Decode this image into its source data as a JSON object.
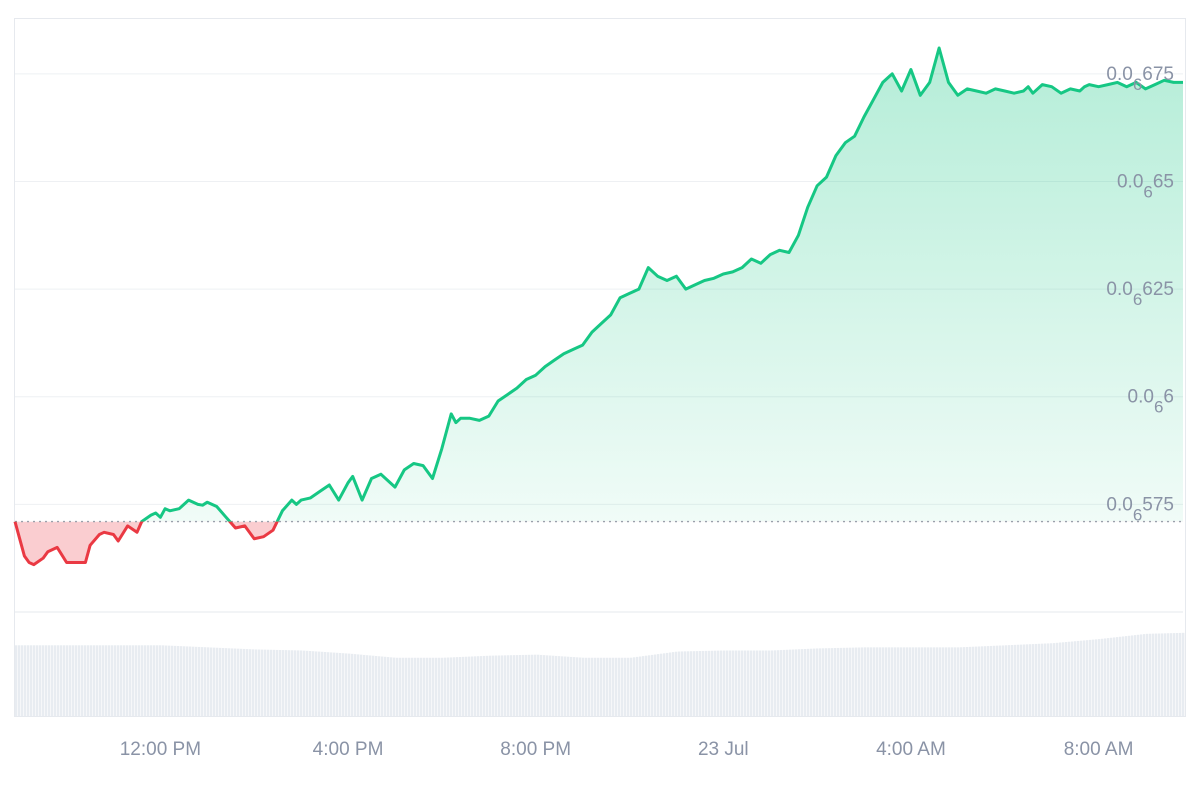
{
  "chart_data": {
    "type": "area",
    "baseline": 5.71e-07,
    "ylim": [
      5.5e-07,
      6.875e-07
    ],
    "grid": true,
    "colors": {
      "up": "#16c784",
      "down": "#ea3943",
      "volume": "#e8ecf1",
      "grid": "#eef0f3",
      "baseline": "#9aa0ab"
    },
    "y_ticks": [
      {
        "value": 5.75e-07,
        "prefix": "0.0",
        "sub": "6",
        "digits": "575"
      },
      {
        "value": 6e-07,
        "prefix": "0.0",
        "sub": "6",
        "digits": "6"
      },
      {
        "value": 6.25e-07,
        "prefix": "0.0",
        "sub": "6",
        "digits": "625"
      },
      {
        "value": 6.5e-07,
        "prefix": "0.0",
        "sub": "6",
        "digits": "65"
      },
      {
        "value": 6.75e-07,
        "prefix": "0.0",
        "sub": "6",
        "digits": "675"
      }
    ],
    "x_ticks": [
      {
        "label": "12:00 PM",
        "t": 4
      },
      {
        "label": "4:00 PM",
        "t": 8
      },
      {
        "label": "8:00 PM",
        "t": 12
      },
      {
        "label": "23 Jul",
        "t": 16
      },
      {
        "label": "4:00 AM",
        "t": 20
      },
      {
        "label": "8:00 AM",
        "t": 24
      }
    ],
    "x_range": [
      0.9,
      25.8
    ],
    "series": [
      {
        "x": [
          0.9,
          1.0,
          1.1,
          1.2,
          1.3,
          1.5,
          1.6,
          1.8,
          2.0,
          2.2,
          2.4,
          2.5,
          2.7,
          2.8,
          3.0,
          3.1,
          3.3,
          3.5,
          3.6,
          3.8,
          3.9,
          4.0,
          4.1,
          4.2,
          4.4,
          4.6,
          4.8,
          4.9,
          5.0,
          5.2,
          5.4,
          5.6,
          5.8,
          6.0,
          6.2,
          6.4,
          6.6,
          6.8,
          6.9,
          7.0,
          7.2,
          7.4,
          7.6,
          7.8,
          8.0,
          8.1,
          8.3,
          8.5,
          8.7,
          9.0,
          9.2,
          9.4,
          9.6,
          9.8,
          10.0,
          10.2,
          10.3,
          10.4,
          10.6,
          10.8,
          11.0,
          11.2,
          11.4,
          11.6,
          11.8,
          12.0,
          12.2,
          12.4,
          12.6,
          12.8,
          13.0,
          13.2,
          13.4,
          13.6,
          13.8,
          14.0,
          14.2,
          14.4,
          14.6,
          14.8,
          15.0,
          15.2,
          15.4,
          15.6,
          15.8,
          16.0,
          16.2,
          16.4,
          16.6,
          16.8,
          17.0,
          17.2,
          17.4,
          17.6,
          17.8,
          18.0,
          18.2,
          18.4,
          18.6,
          18.8,
          19.0,
          19.2,
          19.4,
          19.6,
          19.8,
          20.0,
          20.2,
          20.4,
          20.6,
          20.8,
          21.0,
          21.2,
          21.4,
          21.6,
          21.8,
          22.0,
          22.2,
          22.4,
          22.5,
          22.6,
          22.8,
          23.0,
          23.2,
          23.4,
          23.6,
          23.7,
          23.8,
          24.0,
          24.2,
          24.4,
          24.6,
          24.8,
          25.0,
          25.2,
          25.4,
          25.6,
          25.8
        ],
        "y": [
          5.71e-07,
          5.67e-07,
          5.63e-07,
          5.615e-07,
          5.61e-07,
          5.625e-07,
          5.64e-07,
          5.65e-07,
          5.615e-07,
          5.615e-07,
          5.615e-07,
          5.655e-07,
          5.68e-07,
          5.685e-07,
          5.68e-07,
          5.665e-07,
          5.7e-07,
          5.685e-07,
          5.71e-07,
          5.725e-07,
          5.73e-07,
          5.72e-07,
          5.74e-07,
          5.735e-07,
          5.74e-07,
          5.76e-07,
          5.75e-07,
          5.748e-07,
          5.755e-07,
          5.745e-07,
          5.72e-07,
          5.695e-07,
          5.7e-07,
          5.67e-07,
          5.675e-07,
          5.69e-07,
          5.735e-07,
          5.76e-07,
          5.75e-07,
          5.76e-07,
          5.765e-07,
          5.78e-07,
          5.795e-07,
          5.76e-07,
          5.8e-07,
          5.815e-07,
          5.76e-07,
          5.81e-07,
          5.82e-07,
          5.79e-07,
          5.83e-07,
          5.845e-07,
          5.84e-07,
          5.81e-07,
          5.88e-07,
          5.96e-07,
          5.94e-07,
          5.95e-07,
          5.95e-07,
          5.945e-07,
          5.955e-07,
          5.99e-07,
          6.005e-07,
          6.02e-07,
          6.04e-07,
          6.05e-07,
          6.07e-07,
          6.085e-07,
          6.1e-07,
          6.11e-07,
          6.12e-07,
          6.15e-07,
          6.17e-07,
          6.19e-07,
          6.23e-07,
          6.24e-07,
          6.25e-07,
          6.3e-07,
          6.28e-07,
          6.27e-07,
          6.28e-07,
          6.25e-07,
          6.26e-07,
          6.27e-07,
          6.275e-07,
          6.285e-07,
          6.29e-07,
          6.3e-07,
          6.32e-07,
          6.31e-07,
          6.33e-07,
          6.34e-07,
          6.335e-07,
          6.375e-07,
          6.44e-07,
          6.49e-07,
          6.51e-07,
          6.56e-07,
          6.59e-07,
          6.605e-07,
          6.65e-07,
          6.69e-07,
          6.73e-07,
          6.75e-07,
          6.71e-07,
          6.76e-07,
          6.7e-07,
          6.73e-07,
          6.81e-07,
          6.73e-07,
          6.7e-07,
          6.715e-07,
          6.71e-07,
          6.705e-07,
          6.715e-07,
          6.71e-07,
          6.705e-07,
          6.71e-07,
          6.72e-07,
          6.705e-07,
          6.725e-07,
          6.72e-07,
          6.705e-07,
          6.715e-07,
          6.71e-07,
          6.72e-07,
          6.725e-07,
          6.72e-07,
          6.725e-07,
          6.73e-07,
          6.72e-07,
          6.73e-07,
          6.715e-07,
          6.725e-07,
          6.735e-07,
          6.73e-07,
          6.73e-07
        ]
      }
    ],
    "volume": {
      "x": [
        0.9,
        2.0,
        3.0,
        4.0,
        5.0,
        6.0,
        7.0,
        8.0,
        9.0,
        10.0,
        11.0,
        12.0,
        13.0,
        14.0,
        15.0,
        16.0,
        17.0,
        18.0,
        19.0,
        20.0,
        21.0,
        22.0,
        23.0,
        24.0,
        25.0,
        25.8
      ],
      "values": [
        0.68,
        0.68,
        0.68,
        0.68,
        0.66,
        0.64,
        0.63,
        0.6,
        0.56,
        0.56,
        0.58,
        0.59,
        0.56,
        0.56,
        0.62,
        0.63,
        0.63,
        0.65,
        0.66,
        0.66,
        0.66,
        0.68,
        0.7,
        0.74,
        0.79,
        0.8
      ]
    }
  }
}
